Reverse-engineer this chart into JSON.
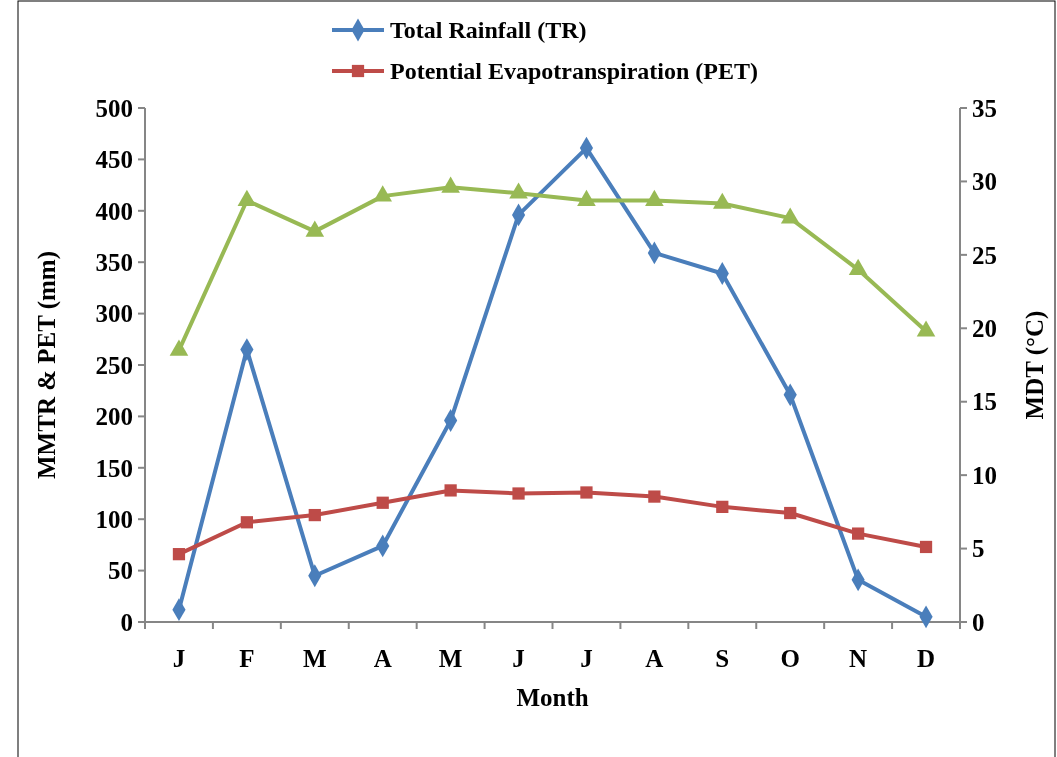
{
  "chart_data": {
    "type": "line",
    "xlabel": "Month",
    "ylabel": "MMTR & PET (mm)",
    "y2label": "MDT (°C)",
    "categories": [
      "J",
      "F",
      "M",
      "A",
      "M",
      "J",
      "J",
      "A",
      "S",
      "O",
      "N",
      "D"
    ],
    "series": [
      {
        "name": "Total Rainfall (TR)",
        "color": "#4a7ebb",
        "marker": "diamond",
        "values": [
          12,
          265,
          45,
          74,
          196,
          396,
          461,
          359,
          339,
          221,
          41,
          5
        ]
      },
      {
        "name": "Potential Evapotranspiration (PET)",
        "color": "#be4b48",
        "marker": "square",
        "values": [
          66,
          97,
          104,
          116,
          128,
          125,
          126,
          122,
          112,
          106,
          86,
          73
        ]
      },
      {
        "color": "#98b954",
        "marker": "triangle",
        "axis": "y2",
        "values": [
          18.5,
          28.7,
          26.6,
          29.0,
          29.6,
          29.2,
          28.7,
          28.7,
          28.5,
          27.5,
          24.0,
          19.8
        ]
      }
    ],
    "ylim": [
      0,
      500
    ],
    "yticks": [
      0,
      50,
      100,
      150,
      200,
      250,
      300,
      350,
      400,
      450,
      500
    ],
    "y2lim": [
      0,
      35
    ],
    "y2ticks": [
      0,
      5,
      10,
      15,
      20,
      25,
      30,
      35
    ],
    "legend": "top",
    "grid": false
  }
}
